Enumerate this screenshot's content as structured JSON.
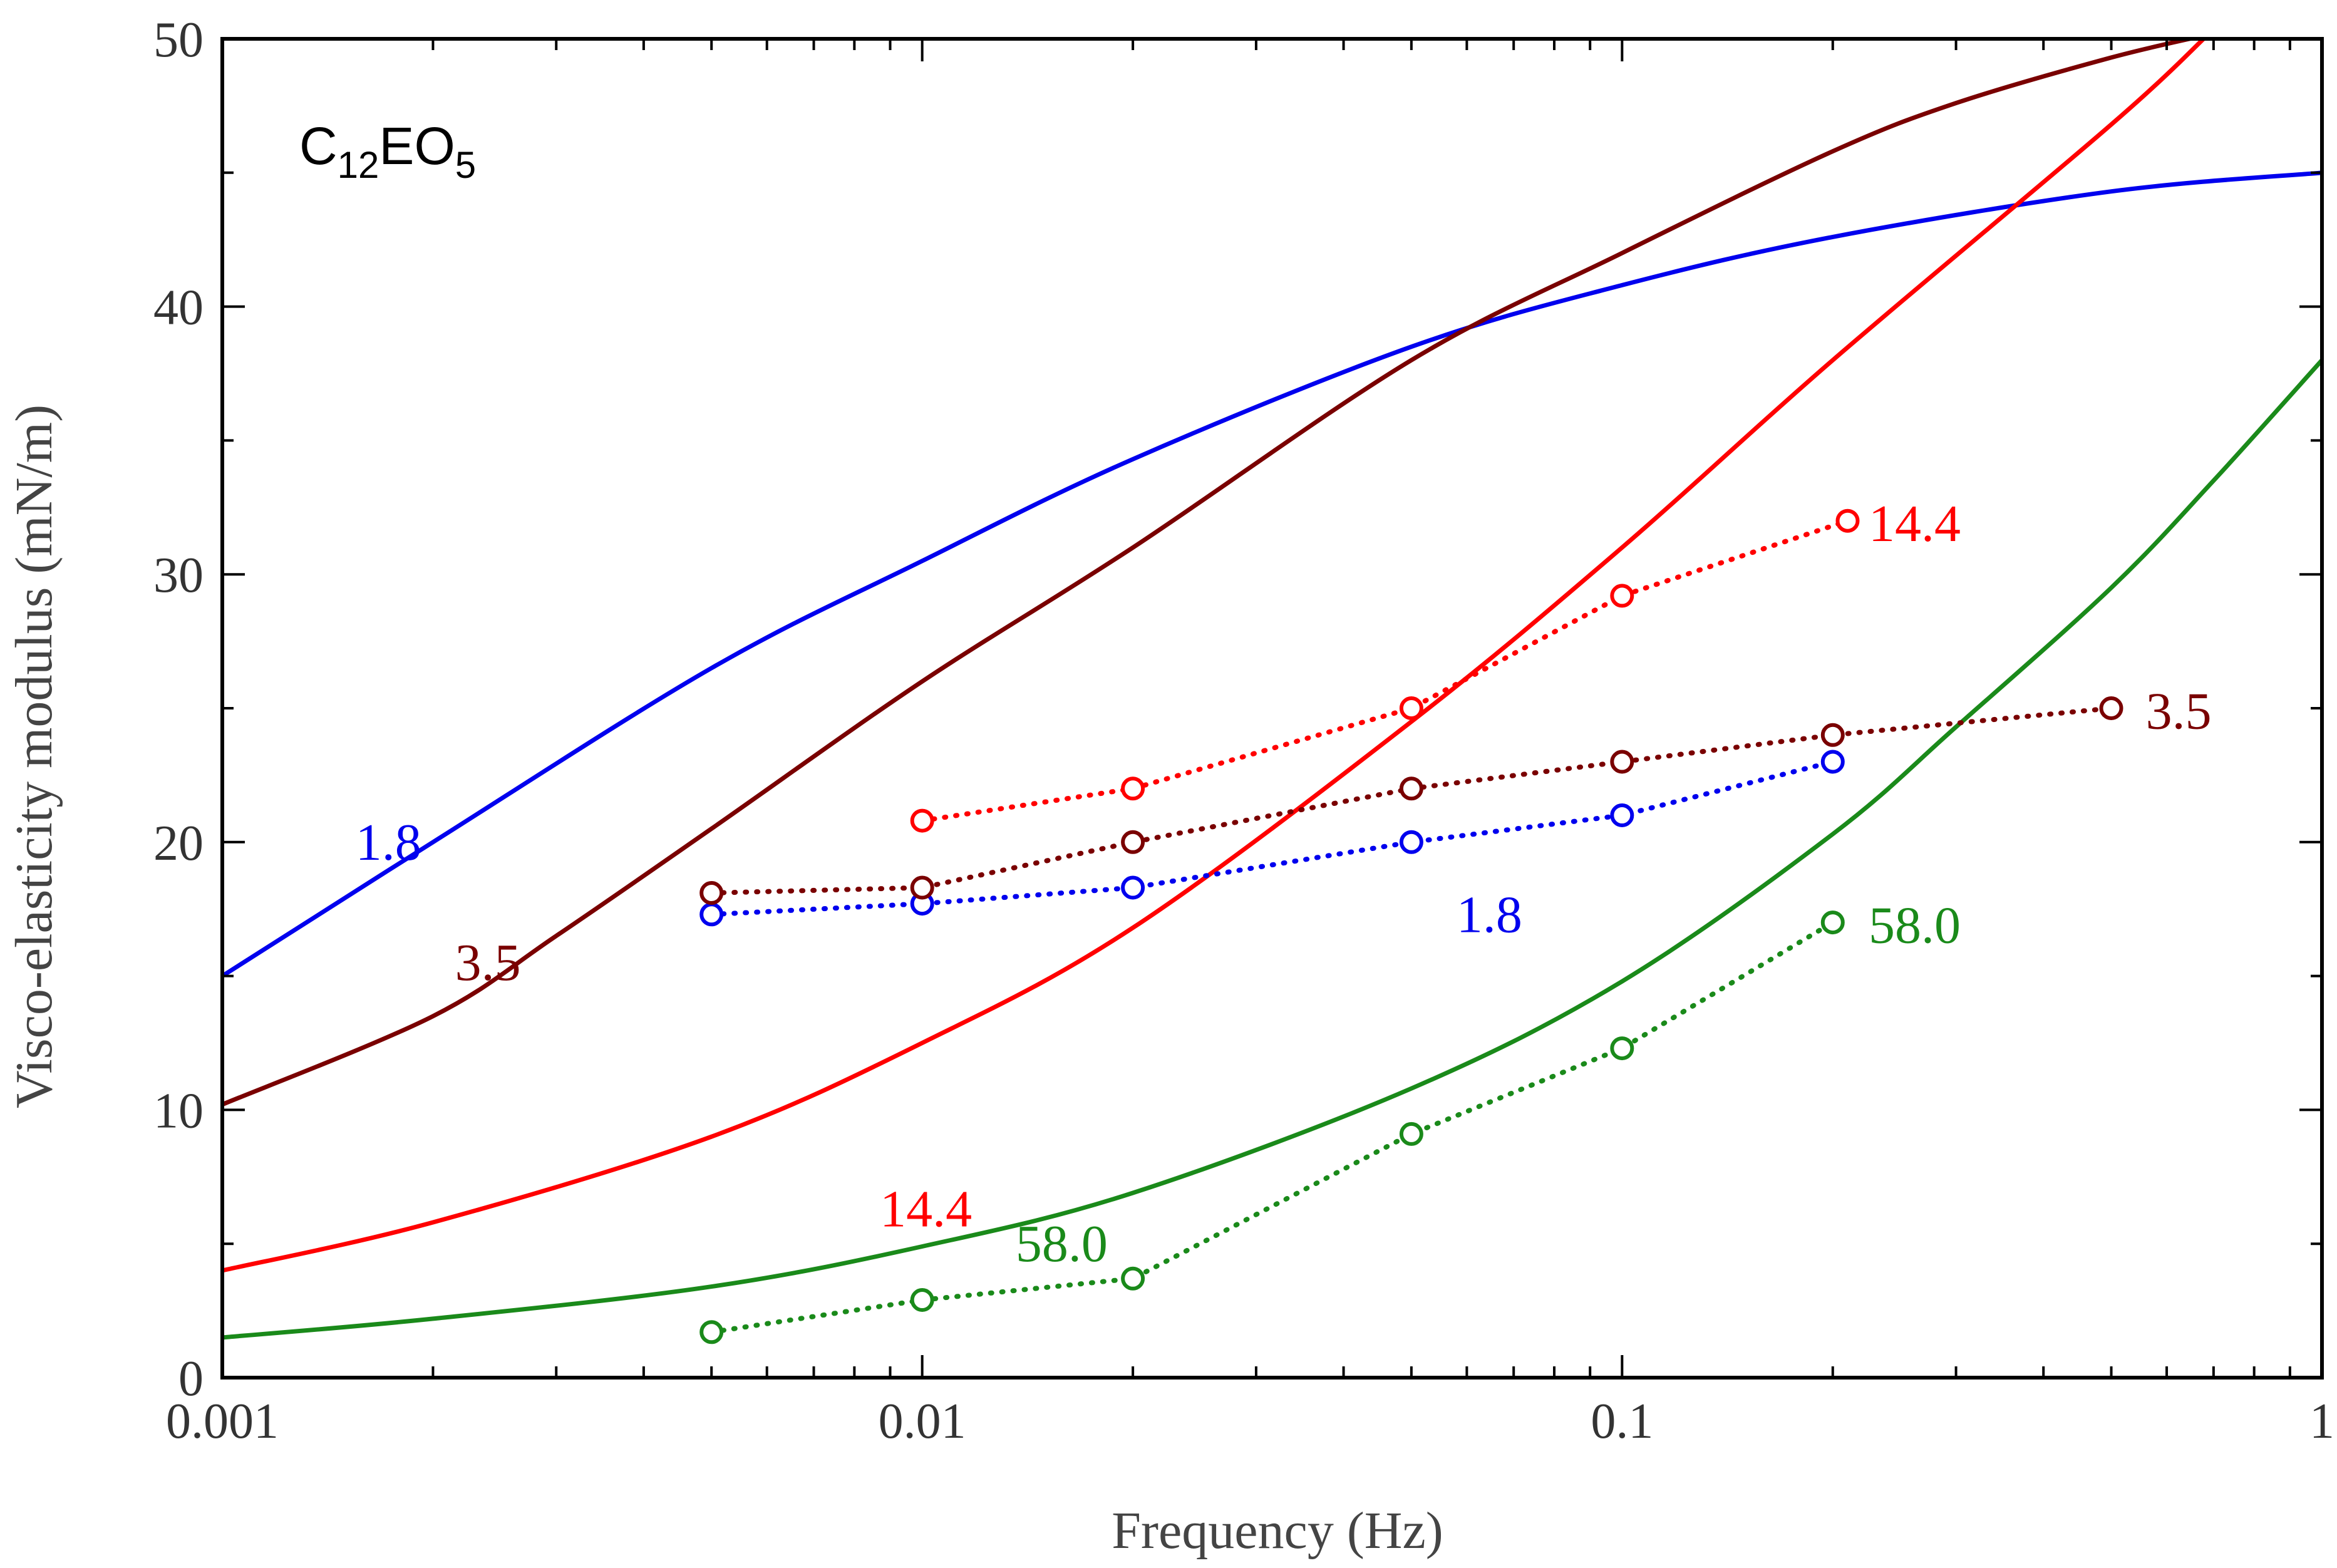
{
  "chart_data": {
    "type": "line",
    "title": "",
    "panel_label": {
      "base": "C",
      "sub1": "12",
      "mid": "EO",
      "sub2": "5"
    },
    "xlabel": "Frequency (Hz)",
    "ylabel": "Visco-elasticity modulus (mN/m)",
    "xscale": "log",
    "xlim": [
      0.001,
      1
    ],
    "ylim": [
      0,
      50
    ],
    "x_ticks": [
      {
        "value": 0.001,
        "label": "0.001"
      },
      {
        "value": 0.01,
        "label": "0.01"
      },
      {
        "value": 0.1,
        "label": "0.1"
      },
      {
        "value": 1,
        "label": "1"
      }
    ],
    "y_ticks": [
      {
        "value": 0,
        "label": "0"
      },
      {
        "value": 10,
        "label": "10"
      },
      {
        "value": 20,
        "label": "20"
      },
      {
        "value": 30,
        "label": "30"
      },
      {
        "value": 40,
        "label": "40"
      },
      {
        "value": 50,
        "label": "50"
      }
    ],
    "grid": false,
    "model_curves": [
      {
        "name": "1.8",
        "color": "#0000ee",
        "x": [
          0.001,
          0.002,
          0.005,
          0.01,
          0.02,
          0.05,
          0.1,
          0.2,
          0.5,
          1.0
        ],
        "y": [
          15.0,
          20.0,
          26.5,
          30.5,
          34.3,
          38.5,
          40.8,
          42.6,
          44.3,
          45.0
        ]
      },
      {
        "name": "3.5",
        "color": "#7a0000",
        "x": [
          0.001,
          0.002,
          0.003,
          0.005,
          0.01,
          0.02,
          0.05,
          0.1,
          0.2,
          0.3,
          0.5,
          0.7
        ],
        "y": [
          10.2,
          13.5,
          16.5,
          20.5,
          26.0,
          31.0,
          38.0,
          42.0,
          45.8,
          47.6,
          49.3,
          50.2
        ]
      },
      {
        "name": "14.4",
        "color": "#ff0000",
        "x": [
          0.001,
          0.002,
          0.005,
          0.01,
          0.02,
          0.05,
          0.1,
          0.2,
          0.5,
          0.69
        ],
        "y": [
          4.0,
          5.8,
          9.0,
          12.5,
          16.8,
          24.5,
          31.0,
          38.0,
          46.8,
          50.2
        ]
      },
      {
        "name": "58.0",
        "color": "#1a8a1a",
        "x": [
          0.001,
          0.002,
          0.005,
          0.01,
          0.02,
          0.05,
          0.1,
          0.2,
          0.3,
          0.5,
          0.7,
          1.0
        ],
        "y": [
          1.5,
          2.2,
          3.4,
          4.9,
          6.9,
          10.8,
          14.8,
          20.3,
          24.3,
          29.5,
          33.5,
          38.0
        ]
      }
    ],
    "experimental_series": [
      {
        "name": "1.8",
        "color": "#0000ee",
        "x": [
          0.005,
          0.01,
          0.02,
          0.05,
          0.1,
          0.2
        ],
        "y": [
          17.3,
          17.7,
          18.3,
          20.0,
          21.0,
          23.0
        ]
      },
      {
        "name": "3.5",
        "color": "#7a0000",
        "x": [
          0.005,
          0.01,
          0.02,
          0.05,
          0.1,
          0.2,
          0.5
        ],
        "y": [
          18.1,
          18.3,
          20.0,
          22.0,
          23.0,
          24.0,
          25.0
        ]
      },
      {
        "name": "14.4",
        "color": "#ff0000",
        "x": [
          0.01,
          0.02,
          0.05,
          0.1,
          0.21
        ],
        "y": [
          20.8,
          22.0,
          25.0,
          29.2,
          32.0
        ]
      },
      {
        "name": "58.0",
        "color": "#1a8a1a",
        "x": [
          0.005,
          0.01,
          0.02,
          0.05,
          0.1,
          0.2
        ],
        "y": [
          1.7,
          2.9,
          3.7,
          9.1,
          12.3,
          17.0
        ]
      }
    ],
    "annotations": [
      {
        "text": "1.8",
        "color": "#0000ee",
        "x": 0.00155,
        "y": 20.0
      },
      {
        "text": "3.5",
        "color": "#7a0000",
        "x": 0.00215,
        "y": 15.5
      },
      {
        "text": "14.4",
        "color": "#ff0000",
        "x": 0.0087,
        "y": 6.3
      },
      {
        "text": "58.0",
        "color": "#1a8a1a",
        "x": 0.0136,
        "y": 5.0
      },
      {
        "text": "14.4",
        "color": "#ff0000",
        "x": 0.225,
        "y": 31.9
      },
      {
        "text": "3.5",
        "color": "#7a0000",
        "x": 0.56,
        "y": 24.9
      },
      {
        "text": "1.8",
        "color": "#0000ee",
        "x": 0.058,
        "y": 17.3
      },
      {
        "text": "58.0",
        "color": "#1a8a1a",
        "x": 0.225,
        "y": 16.9
      }
    ]
  }
}
